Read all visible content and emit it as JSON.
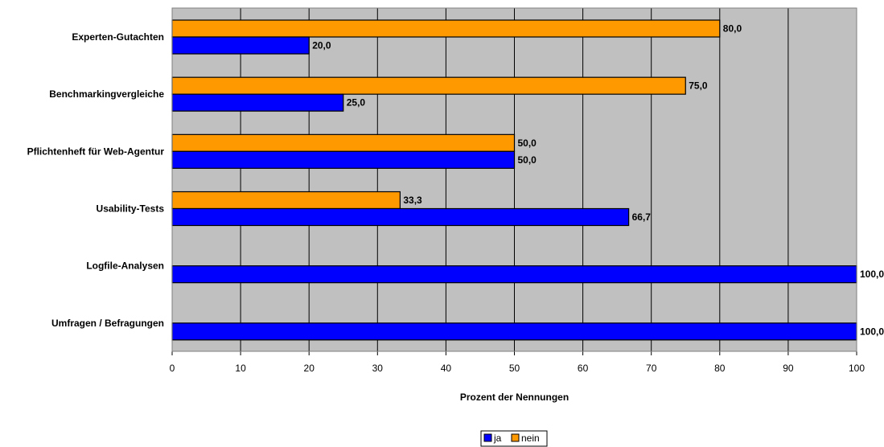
{
  "chart_data": {
    "type": "bar",
    "orientation": "horizontal",
    "categories": [
      "Experten-Gutachten",
      "Benchmarkingvergleiche",
      "Pflichtenheft für Web-Agentur",
      "Usability-Tests",
      "Logfile-Analysen",
      "Umfragen / Befragungen"
    ],
    "series": [
      {
        "name": "nein",
        "color": "#FF9900",
        "values": [
          80.0,
          75.0,
          50.0,
          33.3,
          null,
          null
        ],
        "labels": [
          "80,0",
          "75,0",
          "50,0",
          "33,3",
          "",
          ""
        ]
      },
      {
        "name": "ja",
        "color": "#0000FF",
        "values": [
          20.0,
          25.0,
          50.0,
          66.7,
          100.0,
          100.0
        ],
        "labels": [
          "20,0",
          "25,0",
          "50,0",
          "66,7",
          "100,0",
          "100,0"
        ]
      }
    ],
    "xlabel": "Prozent der Nennungen",
    "xlim": [
      0,
      100
    ],
    "xticks": [
      "0",
      "10",
      "20",
      "30",
      "40",
      "50",
      "60",
      "70",
      "80",
      "90",
      "100"
    ],
    "grid": true,
    "plot_background": "#C0C0C0",
    "legend": {
      "position": "bottom",
      "items": [
        "ja",
        "nein"
      ]
    }
  }
}
